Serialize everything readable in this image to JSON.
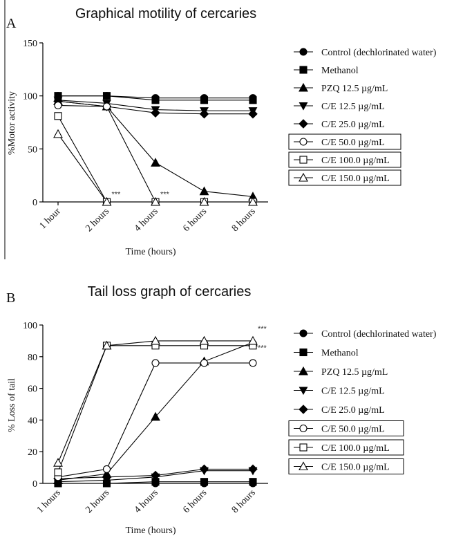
{
  "chart_data": [
    {
      "type": "line",
      "panel": "A",
      "title": "Graphical motility of cercaries",
      "xlabel": "Time (hours)",
      "ylabel": "%Motor activity",
      "categories": [
        "1 hour",
        "2 hours",
        "4 hours",
        "6 hours",
        "8 hours"
      ],
      "ylim": [
        0,
        150
      ],
      "yticks": [
        0,
        50,
        100,
        150
      ],
      "grid": false,
      "legend_position": "right",
      "series": [
        {
          "name": "Control (dechlorinated water)",
          "marker": "circle-filled",
          "boxed": false,
          "values": [
            100,
            100,
            98,
            98,
            98
          ]
        },
        {
          "name": "Methanol",
          "marker": "square-filled",
          "boxed": false,
          "values": [
            100,
            100,
            96,
            96,
            96
          ]
        },
        {
          "name": "PZQ 12.5 µg/mL",
          "marker": "triangle-filled",
          "boxed": false,
          "values": [
            95,
            90,
            37,
            10,
            5
          ]
        },
        {
          "name": "C/E 12.5 µg/mL",
          "marker": "triangle-down-filled",
          "boxed": false,
          "values": [
            96,
            93,
            87,
            86,
            86
          ]
        },
        {
          "name": "C/E 25.0 µg/mL",
          "marker": "diamond-filled",
          "boxed": false,
          "values": [
            95,
            90,
            84,
            83,
            83
          ]
        },
        {
          "name": "C/E 50.0 µg/mL",
          "marker": "circle-open",
          "boxed": true,
          "values": [
            91,
            90,
            0,
            0,
            0
          ]
        },
        {
          "name": "C/E 100.0 µg/mL",
          "marker": "square-open",
          "boxed": true,
          "values": [
            81,
            0,
            0,
            0,
            0
          ]
        },
        {
          "name": "C/E 150.0 µg/mL",
          "marker": "triangle-open",
          "boxed": true,
          "values": [
            64,
            0,
            0,
            0,
            0
          ]
        }
      ],
      "annotations": [
        {
          "text": "***",
          "category": "2 hours",
          "y": 5
        },
        {
          "text": "***",
          "category": "4 hours",
          "y": 5
        }
      ]
    },
    {
      "type": "line",
      "panel": "B",
      "title": "Tail loss graph of cercaries",
      "xlabel": "Time (hours)",
      "ylabel": "% Loss of tail",
      "categories": [
        "1 hours",
        "2 hours",
        "4 hours",
        "6 hours",
        "8 hours"
      ],
      "ylim": [
        0,
        100
      ],
      "yticks": [
        0,
        20,
        40,
        60,
        80,
        100
      ],
      "grid": false,
      "legend_position": "right",
      "series": [
        {
          "name": "Control (dechlorinated water)",
          "marker": "circle-filled",
          "boxed": false,
          "values": [
            0,
            0,
            0,
            0,
            0
          ]
        },
        {
          "name": "Methanol",
          "marker": "square-filled",
          "boxed": false,
          "values": [
            0,
            0,
            1,
            1,
            1
          ]
        },
        {
          "name": "PZQ 12.5 µg/mL",
          "marker": "triangle-filled",
          "boxed": false,
          "values": [
            2,
            6,
            42,
            77,
            89
          ]
        },
        {
          "name": "C/E 12.5 µg/mL",
          "marker": "triangle-down-filled",
          "boxed": false,
          "values": [
            1,
            2,
            4,
            8,
            8
          ]
        },
        {
          "name": "C/E 25.0 µg/mL",
          "marker": "diamond-filled",
          "boxed": false,
          "values": [
            3,
            4,
            5,
            9,
            9
          ]
        },
        {
          "name": "C/E 50.0 µg/mL",
          "marker": "circle-open",
          "boxed": true,
          "values": [
            4,
            9,
            76,
            76,
            76
          ]
        },
        {
          "name": "C/E 100.0 µg/mL",
          "marker": "square-open",
          "boxed": true,
          "values": [
            7,
            87,
            87,
            87,
            87
          ]
        },
        {
          "name": "C/E 150.0 µg/mL",
          "marker": "triangle-open",
          "boxed": true,
          "values": [
            13,
            87,
            90,
            90,
            90
          ]
        }
      ],
      "annotations": [
        {
          "text": "***",
          "category": "8 hours",
          "y": 96
        },
        {
          "text": "***",
          "category": "8 hours",
          "y": 84
        }
      ]
    }
  ]
}
